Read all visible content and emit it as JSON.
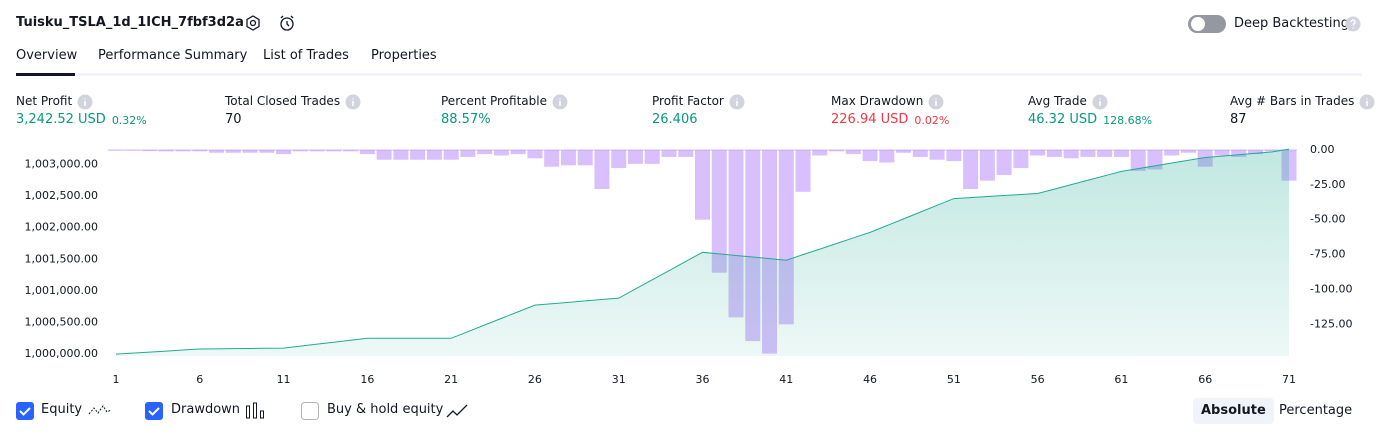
{
  "header": {
    "title": "Tuisku_TSLA_1d_1ICH_7fbf3d2a",
    "toggle_label": "Deep Backtesting"
  },
  "tabs": [
    "Overview",
    "Performance Summary",
    "List of Trades",
    "Properties"
  ],
  "metrics": [
    {
      "label": "Net Profit",
      "value": "3,242.52 USD",
      "change": "0.32%",
      "color": "#089981"
    },
    {
      "label": "Total Closed Trades",
      "value": "70",
      "color": "#131722"
    },
    {
      "label": "Percent Profitable",
      "value": "88.57%",
      "color": "#089981"
    },
    {
      "label": "Profit Factor",
      "value": "26.406",
      "color": "#089981"
    },
    {
      "label": "Max Drawdown",
      "value": "226.94 USD",
      "change": "0.02%",
      "color": "#f23645"
    },
    {
      "label": "Avg Trade",
      "value": "46.32 USD",
      "change": "128.68%",
      "color": "#089981"
    },
    {
      "label": "Avg # Bars in Trades",
      "value": "87",
      "color": "#131722"
    }
  ],
  "chart_data": {
    "type": "combo",
    "x": [
      1,
      2,
      3,
      4,
      5,
      6,
      7,
      8,
      9,
      10,
      11,
      12,
      13,
      14,
      15,
      16,
      17,
      18,
      19,
      20,
      21,
      22,
      23,
      24,
      25,
      26,
      27,
      28,
      29,
      30,
      31,
      32,
      33,
      34,
      35,
      36,
      37,
      38,
      39,
      40,
      41,
      42,
      43,
      44,
      45,
      46,
      47,
      48,
      49,
      50,
      51,
      52,
      53,
      54,
      55,
      56,
      57,
      58,
      59,
      60,
      61,
      62,
      63,
      64,
      65,
      66,
      67,
      68,
      69,
      70,
      71
    ],
    "xlim": [
      1,
      71
    ],
    "xticks": [
      1,
      6,
      11,
      16,
      21,
      26,
      31,
      36,
      41,
      46,
      51,
      56,
      61,
      66,
      71
    ],
    "ylim": [
      999970,
      1003260
    ],
    "yticks": [
      {
        "value": 1000000,
        "label": "1,000,000.00"
      },
      {
        "value": 1000500,
        "label": "1,000,500.00"
      },
      {
        "value": 1001000,
        "label": "1,001,000.00"
      },
      {
        "value": 1001500,
        "label": "1,001,500.00"
      },
      {
        "value": 1002000,
        "label": "1,002,000.00"
      },
      {
        "value": 1002500,
        "label": "1,002,500.00"
      },
      {
        "value": 1003000,
        "label": "1,003,000.00"
      }
    ],
    "y2lim": [
      -147.7,
      1.4
    ],
    "y2ticks": [
      {
        "value": 0,
        "label": "0.00"
      },
      {
        "value": -25,
        "label": "-25.00"
      },
      {
        "value": -50,
        "label": "-50.00"
      },
      {
        "value": -75,
        "label": "-75.00"
      },
      {
        "value": -100,
        "label": "-100.00"
      },
      {
        "value": -125,
        "label": "-125.00"
      }
    ],
    "series": [
      {
        "name": "Drawdown",
        "type": "bar",
        "axis": "y2",
        "color": "rgba(186,140,250,0.55)",
        "values": [
          -0.5,
          -0.5,
          -0.8,
          -1,
          -1,
          -1,
          -2,
          -2,
          -2,
          -2,
          -3,
          -1,
          -1,
          -1,
          -1,
          -3,
          -7,
          -7,
          -7,
          -7,
          -7,
          -5,
          -3,
          -4,
          -3,
          -6,
          -12,
          -11,
          -11,
          -28,
          -13,
          -10,
          -10,
          -5,
          -5,
          -50,
          -88,
          -120,
          -137,
          -146,
          -125,
          -30,
          -4,
          -1,
          -3,
          -8,
          -9,
          -2,
          -5,
          -7,
          -8,
          -28,
          -22,
          -18,
          -13,
          -4,
          -5,
          -6,
          -5,
          -5,
          -5,
          -15,
          -14,
          -4,
          -2,
          -12,
          -4,
          -5,
          -3,
          -1,
          -22
        ]
      },
      {
        "name": "Equity",
        "type": "area",
        "axis": "y",
        "color": "#22ab94",
        "values": [
          1000000,
          1000016,
          1000032,
          1000048,
          1000064,
          1000080,
          1000083,
          1000086,
          1000089,
          1000092,
          1000095,
          1000126,
          1000157,
          1000188,
          1000219,
          1000250,
          1000250,
          1000250,
          1000250,
          1000250,
          1000250,
          1000355,
          1000460,
          1000565,
          1000670,
          1000775,
          1000797,
          1000819,
          1000841,
          1000863,
          1000885,
          1001030,
          1001175,
          1001320,
          1001465,
          1001610,
          1001585,
          1001560,
          1001535,
          1001510,
          1001485,
          1001573,
          1001661,
          1001749,
          1001837,
          1001925,
          1002032,
          1002139,
          1002246,
          1002353,
          1002460,
          1002476,
          1002492,
          1002508,
          1002524,
          1002540,
          1002610,
          1002680,
          1002750,
          1002820,
          1002890,
          1002934,
          1002978,
          1003022,
          1003066,
          1003110,
          1003132,
          1003154,
          1003176,
          1003198,
          1003242.52
        ]
      }
    ]
  },
  "controls": {
    "buy_hold": "Buy & hold equity",
    "modes": [
      "Absolute",
      "Percentage"
    ]
  }
}
